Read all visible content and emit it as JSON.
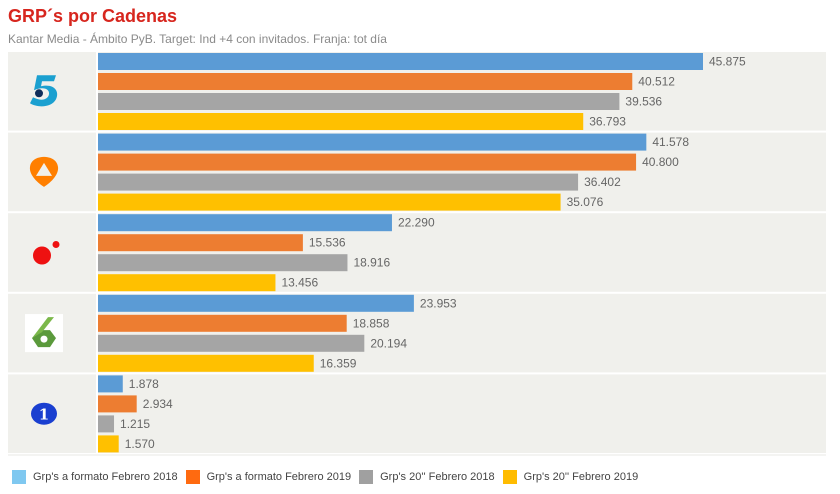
{
  "header": {
    "title": "GRP´s por Cadenas",
    "subtitle": "Kantar Media - Ámbito PyB. Target: Ind +4 con invitados. Franja: tot día"
  },
  "chart_data": {
    "type": "bar",
    "orientation": "horizontal",
    "title": "GRP´s por Cadenas",
    "subtitle": "Kantar Media - Ámbito PyB. Target: Ind +4 con invitados. Franja: tot día",
    "xlabel": "",
    "ylabel": "",
    "xlim": [
      0,
      55
    ],
    "grid": false,
    "legend_position": "bottom-left",
    "categories": [
      "Telecinco",
      "Antena 3",
      "Cuatro",
      "La Sexta",
      "La 1"
    ],
    "category_logos": [
      "telecinco-logo-icon",
      "antena3-logo-icon",
      "cuatro-logo-icon",
      "lasexta-logo-icon",
      "la1-logo-icon"
    ],
    "series": [
      {
        "name": "Grp's a formato Febrero 2018",
        "color": "#5b9bd5",
        "legend_color": "#7fc8f0",
        "values": [
          45.875,
          41.578,
          22.29,
          23.953,
          1.878
        ],
        "labels": [
          "45.875",
          "41.578",
          "22.290",
          "23.953",
          "1.878"
        ]
      },
      {
        "name": "Grp's a formato Febrero 2019",
        "color": "#ed7d31",
        "legend_color": "#ff6a10",
        "values": [
          40.512,
          40.8,
          15.536,
          18.858,
          2.934
        ],
        "labels": [
          "40.512",
          "40.800",
          "15.536",
          "18.858",
          "2.934"
        ]
      },
      {
        "name": "Grp's 20'' Febrero 2018",
        "color": "#a5a5a5",
        "legend_color": "#a0a0a0",
        "values": [
          39.536,
          36.402,
          18.916,
          20.194,
          1.215
        ],
        "labels": [
          "39.536",
          "36.402",
          "18.916",
          "20.194",
          "1.215"
        ]
      },
      {
        "name": "Grp's 20'' Febrero 2019",
        "color": "#ffc000",
        "legend_color": "#ffbc00",
        "values": [
          36.793,
          35.076,
          13.456,
          16.359,
          1.57
        ],
        "labels": [
          "36.793",
          "35.076",
          "13.456",
          "16.359",
          "1.570"
        ]
      }
    ]
  },
  "colors": {
    "title": "#d7261e",
    "panel_bg": "#f0f0ec",
    "label_text": "#666666"
  }
}
